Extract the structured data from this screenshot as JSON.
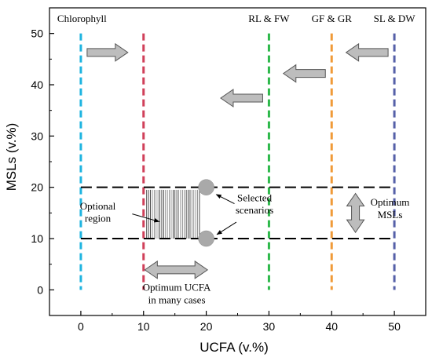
{
  "chart_data": {
    "type": "line",
    "xlabel": "UCFA (v.%)",
    "ylabel": "MSLs (v.%)",
    "xlim": [
      -5,
      55
    ],
    "ylim": [
      -5,
      55
    ],
    "x_ticks": [
      0,
      10,
      20,
      30,
      40,
      50
    ],
    "y_ticks": [
      0,
      10,
      20,
      30,
      40,
      50
    ],
    "grid": false,
    "vertical_lines": [
      {
        "x": 0,
        "label": "Chlorophyll",
        "color": "#1fb4e0"
      },
      {
        "x": 10,
        "label": "",
        "color": "#d0405a"
      },
      {
        "x": 30,
        "label": "RL & FW",
        "color": "#2db84a"
      },
      {
        "x": 40,
        "label": "GF & GR",
        "color": "#f09a38"
      },
      {
        "x": 50,
        "label": "SL & DW",
        "color": "#5560a8"
      }
    ],
    "horizontal_lines": [
      {
        "y": 20,
        "color": "#000000"
      },
      {
        "y": 10,
        "color": "#000000"
      }
    ],
    "selected_points": [
      {
        "x": 20,
        "y": 20
      },
      {
        "x": 20,
        "y": 10
      }
    ],
    "hatched_region": {
      "x": [
        10.5,
        19
      ],
      "y": [
        10,
        19.5
      ]
    },
    "annotations": {
      "optional_region": [
        "Optional",
        "region"
      ],
      "selected_scenarios": [
        "Selected",
        "scenarios"
      ],
      "optimum_msls": [
        "Optimum",
        "MSLs"
      ],
      "optimum_ucfa": [
        "Optimum UCFA",
        "in many cases"
      ]
    },
    "arrow_color": "#bdbdbd"
  }
}
